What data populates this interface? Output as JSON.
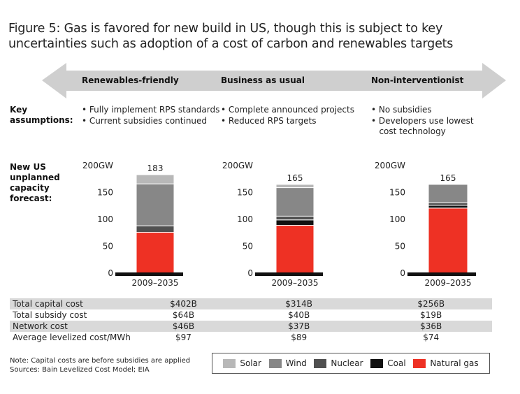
{
  "title": "Figure 5: Gas is favored for new build in US, though this is subject to key uncertainties such as adoption of a cost of carbon and renewables targets",
  "scenarios": [
    "Renewables-friendly",
    "Business as usual",
    "Non-interventionist"
  ],
  "row_labels": {
    "key_assumptions": "Key assumptions:",
    "forecast": "New US unplanned capacity forecast:"
  },
  "assumptions": [
    [
      "• Fully implement RPS standards",
      "• Current subsidies continued"
    ],
    [
      "• Complete announced projects",
      "• Reduced RPS targets"
    ],
    [
      "• No subsidies",
      "• Developers use lowest",
      "   cost technology"
    ]
  ],
  "colors": {
    "solar": "#b8b8b8",
    "wind": "#878787",
    "nuclear": "#505050",
    "coal": "#111111",
    "gas": "#ee3124",
    "arrow": "#cfcfcf"
  },
  "chart_data": [
    {
      "type": "bar",
      "stacked": true,
      "title": "Renewables-friendly",
      "categories": [
        "2009–2035"
      ],
      "total_label": "183",
      "y_ticks": [
        "200GW",
        "150",
        "100",
        "50",
        "0"
      ],
      "ylim": [
        0,
        200
      ],
      "series": [
        {
          "name": "Natural gas",
          "values": [
            76
          ]
        },
        {
          "name": "Coal",
          "values": [
            0
          ]
        },
        {
          "name": "Nuclear",
          "values": [
            12
          ]
        },
        {
          "name": "Wind",
          "values": [
            78
          ]
        },
        {
          "name": "Solar",
          "values": [
            17
          ]
        }
      ]
    },
    {
      "type": "bar",
      "stacked": true,
      "title": "Business as usual",
      "categories": [
        "2009–2035"
      ],
      "total_label": "165",
      "y_ticks": [
        "200GW",
        "150",
        "100",
        "50",
        "0"
      ],
      "ylim": [
        0,
        200
      ],
      "series": [
        {
          "name": "Natural gas",
          "values": [
            89
          ]
        },
        {
          "name": "Coal",
          "values": [
            10
          ]
        },
        {
          "name": "Nuclear",
          "values": [
            7
          ]
        },
        {
          "name": "Wind",
          "values": [
            53
          ]
        },
        {
          "name": "Solar",
          "values": [
            6
          ]
        }
      ]
    },
    {
      "type": "bar",
      "stacked": true,
      "title": "Non-interventionist",
      "categories": [
        "2009–2035"
      ],
      "total_label": "165",
      "y_ticks": [
        "200GW",
        "150",
        "100",
        "50",
        "0"
      ],
      "ylim": [
        0,
        200
      ],
      "series": [
        {
          "name": "Natural gas",
          "values": [
            121
          ]
        },
        {
          "name": "Coal",
          "values": [
            5
          ]
        },
        {
          "name": "Nuclear",
          "values": [
            5
          ]
        },
        {
          "name": "Wind",
          "values": [
            34
          ]
        },
        {
          "name": "Solar",
          "values": [
            0
          ]
        }
      ]
    }
  ],
  "costs": [
    {
      "label": "Total capital cost",
      "values": [
        "$402B",
        "$314B",
        "$256B"
      ]
    },
    {
      "label": "Total subsidy cost",
      "values": [
        "$64B",
        "$40B",
        "$19B"
      ]
    },
    {
      "label": "Network cost",
      "values": [
        "$46B",
        "$37B",
        "$36B"
      ]
    },
    {
      "label": "Average levelized cost/MWh",
      "values": [
        "$97",
        "$89",
        "$74"
      ]
    }
  ],
  "notes": [
    "Note: Capital costs are before subsidies are applied",
    "Sources: Bain Levelized Cost Model; EIA"
  ],
  "legend": [
    {
      "label": "Solar",
      "color": "#b8b8b8"
    },
    {
      "label": "Wind",
      "color": "#878787"
    },
    {
      "label": "Nuclear",
      "color": "#505050"
    },
    {
      "label": "Coal",
      "color": "#111111"
    },
    {
      "label": "Natural gas",
      "color": "#ee3124"
    }
  ]
}
